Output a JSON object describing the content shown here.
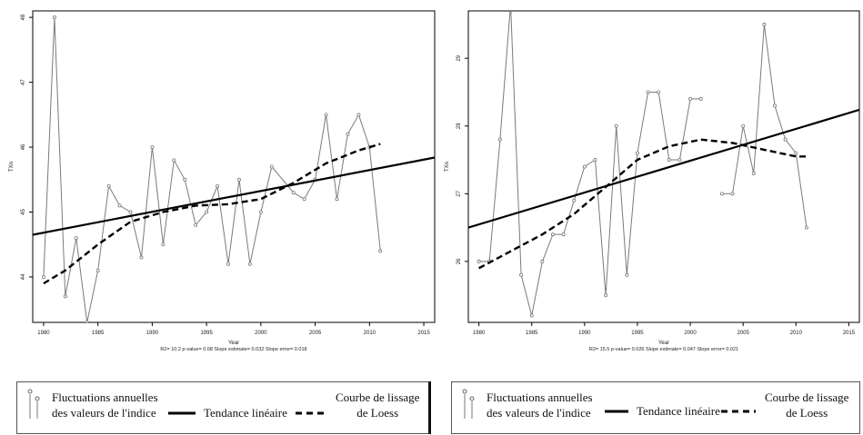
{
  "chart_data": [
    {
      "type": "line",
      "title": "",
      "xlabel": "Year",
      "ylabel": "TXn",
      "xlim": [
        1979,
        2016
      ],
      "ylim": [
        43.3,
        48.1
      ],
      "xticks": [
        "1980",
        "1985",
        "1990",
        "1995",
        "2000",
        "2005",
        "2010",
        "2015"
      ],
      "yticks": [
        "44",
        "45",
        "46",
        "47",
        "48"
      ],
      "stats": "R2= 10.2  p-value= 0.08  Slope estimate= 0.032  Slope error= 0.018",
      "series": [
        {
          "x": [
            1980,
            1981,
            1982,
            1983,
            1984,
            1985,
            1986,
            1987,
            1988,
            1989,
            1990,
            1991,
            1992,
            1993,
            1994,
            1995,
            1996,
            1997,
            1998,
            1999,
            2000,
            2001,
            2003,
            2004,
            2005,
            2006,
            2007,
            2008,
            2009,
            2010,
            2011
          ],
          "y": [
            44.0,
            48.0,
            43.7,
            44.6,
            43.3,
            44.1,
            45.4,
            45.1,
            45.0,
            44.3,
            46.0,
            44.5,
            45.8,
            45.5,
            44.8,
            45.0,
            45.4,
            44.2,
            45.5,
            44.2,
            45.0,
            45.7,
            45.3,
            45.2,
            45.5,
            46.5,
            45.2,
            46.2,
            46.5,
            46.0,
            44.4
          ]
        },
        {
          "x": [
            1979,
            2016
          ],
          "y": [
            44.65,
            45.84
          ]
        },
        {
          "x": [
            1980,
            1982,
            1985,
            1988,
            1991,
            1994,
            1997,
            2000,
            2003,
            2006,
            2009,
            2011
          ],
          "y": [
            43.9,
            44.1,
            44.5,
            44.85,
            45.0,
            45.1,
            45.12,
            45.2,
            45.45,
            45.75,
            45.95,
            46.05
          ]
        }
      ]
    },
    {
      "type": "line",
      "title": "",
      "xlabel": "Year",
      "ylabel": "TXn",
      "xlim": [
        1979,
        2016
      ],
      "ylim": [
        25.1,
        29.7
      ],
      "xticks": [
        "1980",
        "1985",
        "1990",
        "1995",
        "2000",
        "2005",
        "2010",
        "2015"
      ],
      "yticks": [
        "26",
        "27",
        "28",
        "29"
      ],
      "stats": "R2= 15.5  p-value= 0.026  Slope estimate= 0.047  Slope error= 0.021",
      "series": [
        {
          "x": [
            1980,
            1981,
            1982,
            1983,
            1984,
            1985,
            1986,
            1987,
            1988,
            1989,
            1990,
            1991,
            1992,
            1993,
            1994,
            1995,
            1996,
            1997,
            1998,
            1999,
            2000,
            2001
          ],
          "y": [
            26.0,
            26.0,
            27.8,
            29.8,
            25.8,
            25.2,
            26.0,
            26.4,
            26.4,
            26.9,
            27.4,
            27.5,
            25.5,
            28.0,
            25.8,
            27.6,
            28.5,
            28.5,
            27.5,
            27.5,
            28.4,
            28.4
          ]
        },
        {
          "x": [
            2003,
            2004,
            2005,
            2006,
            2007,
            2008,
            2009,
            2010,
            2011
          ],
          "y": [
            27.0,
            27.0,
            28.0,
            27.3,
            29.5,
            28.3,
            27.8,
            27.6,
            26.5
          ]
        },
        {
          "x": [
            1979,
            2016
          ],
          "y": [
            26.5,
            28.24
          ]
        },
        {
          "x": [
            1980,
            1983,
            1986,
            1989,
            1992,
            1995,
            1998,
            2001,
            2004,
            2007,
            2010,
            2011
          ],
          "y": [
            25.9,
            26.15,
            26.4,
            26.7,
            27.1,
            27.5,
            27.7,
            27.8,
            27.75,
            27.65,
            27.55,
            27.55
          ]
        }
      ]
    }
  ],
  "legend": {
    "item1_line1": "Fluctuations annuelles",
    "item1_line2": "des valeurs de l'indice",
    "item2": "Tendance linéaire",
    "item3_line1": "Courbe de lissage",
    "item3_line2": "de Loess"
  },
  "colors": {
    "data": "#7a7a7a",
    "trend": "#000000",
    "loess": "#000000"
  },
  "icons": {
    "legend_symbol": "marker-icon"
  }
}
